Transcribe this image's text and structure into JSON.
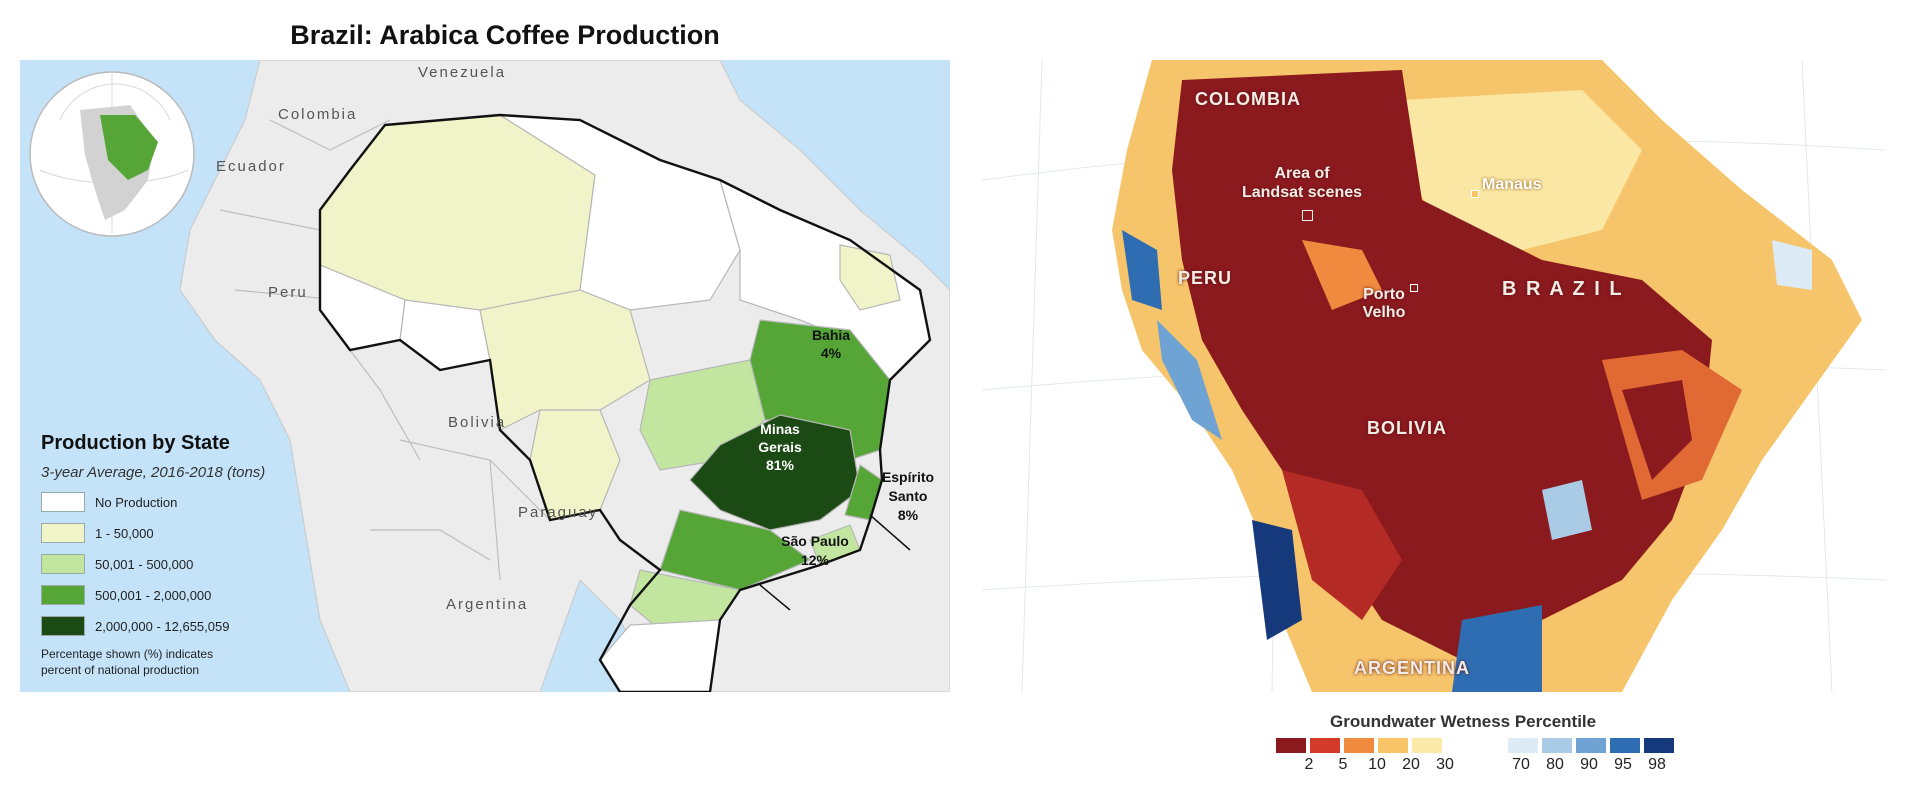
{
  "left_map": {
    "title": "Brazil: Arabica Coffee Production",
    "countries": {
      "venezuela": "Venezuela",
      "colombia": "Colombia",
      "ecuador": "Ecuador",
      "peru": "Peru",
      "bolivia": "Bolivia",
      "paraguay": "Paraguay",
      "argentina": "Argentina"
    },
    "states": {
      "bahia": {
        "name": "Bahia",
        "pct": "4%"
      },
      "minas": {
        "name1": "Minas",
        "name2": "Gerais",
        "pct": "81%"
      },
      "espirito": {
        "name1": "Espírito",
        "name2": "Santo",
        "pct": "8%"
      },
      "sao_paulo": {
        "name": "São Paulo",
        "pct": "12%"
      }
    },
    "legend": {
      "title": "Production by State",
      "subtitle": "3-year Average, 2016-2018 (tons)",
      "items": [
        {
          "label": "No Production",
          "color": "#ffffff"
        },
        {
          "label": "1 - 50,000",
          "color": "#f1f4c8"
        },
        {
          "label": "50,001 - 500,000",
          "color": "#c2e6a0"
        },
        {
          "label": "500,001 - 2,000,000",
          "color": "#55a537"
        },
        {
          "label": "2,000,000 - 12,655,059",
          "color": "#1c4a14"
        }
      ],
      "note_line1": "Percentage shown (%) indicates",
      "note_line2": "percent of national production"
    },
    "colors": {
      "ocean": "#c4e3f9",
      "land_other": "#ececec",
      "brazil_outline": "#111111"
    }
  },
  "right_map": {
    "labels": {
      "colombia": "COLOMBIA",
      "peru": "PERU",
      "brazil": "B R A Z I L",
      "bolivia": "BOLIVIA",
      "argentina": "ARGENTINA",
      "area_line1": "Area of",
      "area_line2": "Landsat scenes",
      "manaus": "Manaus",
      "porto_line1": "Porto",
      "porto_line2": "Velho"
    },
    "legend": {
      "title": "Groundwater Wetness Percentile",
      "dry": [
        {
          "label": "2",
          "color": "#8b1a1f"
        },
        {
          "label": "5",
          "color": "#d43a2a"
        },
        {
          "label": "10",
          "color": "#f08a3e"
        },
        {
          "label": "20",
          "color": "#f7c467"
        },
        {
          "label": "30",
          "color": "#fbeaa8"
        }
      ],
      "wet": [
        {
          "label": "70",
          "color": "#dcebf6"
        },
        {
          "label": "80",
          "color": "#a9cbe6"
        },
        {
          "label": "90",
          "color": "#6ea3d3"
        },
        {
          "label": "95",
          "color": "#2f6db3"
        },
        {
          "label": "98",
          "color": "#15397a"
        }
      ]
    }
  }
}
